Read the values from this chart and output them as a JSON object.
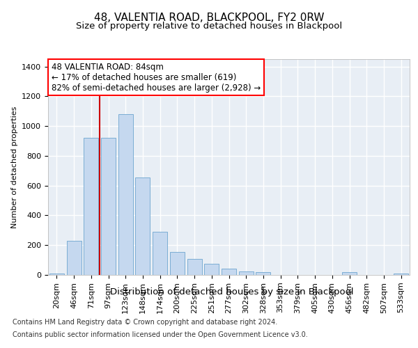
{
  "title": "48, VALENTIA ROAD, BLACKPOOL, FY2 0RW",
  "subtitle": "Size of property relative to detached houses in Blackpool",
  "xlabel": "Distribution of detached houses by size in Blackpool",
  "ylabel": "Number of detached properties",
  "categories": [
    "20sqm",
    "46sqm",
    "71sqm",
    "97sqm",
    "123sqm",
    "148sqm",
    "174sqm",
    "200sqm",
    "225sqm",
    "251sqm",
    "277sqm",
    "302sqm",
    "328sqm",
    "353sqm",
    "379sqm",
    "405sqm",
    "430sqm",
    "456sqm",
    "482sqm",
    "507sqm",
    "533sqm"
  ],
  "values": [
    10,
    228,
    920,
    920,
    1080,
    655,
    290,
    155,
    107,
    73,
    40,
    25,
    20,
    0,
    0,
    0,
    0,
    20,
    0,
    0,
    10
  ],
  "bar_color": "#c5d8ef",
  "bar_edge_color": "#7badd4",
  "red_line_color": "#cc0000",
  "red_line_x": 2.5,
  "ylim": [
    0,
    1450
  ],
  "yticks": [
    0,
    200,
    400,
    600,
    800,
    1000,
    1200,
    1400
  ],
  "annotation_box_text": "48 VALENTIA ROAD: 84sqm\n← 17% of detached houses are smaller (619)\n82% of semi-detached houses are larger (2,928) →",
  "bg_color": "#e8eef5",
  "grid_color": "#ffffff",
  "title_fontsize": 11,
  "subtitle_fontsize": 9.5,
  "xlabel_fontsize": 9.5,
  "ylabel_fontsize": 8,
  "tick_fontsize": 8,
  "annotation_fontsize": 8.5,
  "footer_line1": "Contains HM Land Registry data © Crown copyright and database right 2024.",
  "footer_line2": "Contains public sector information licensed under the Open Government Licence v3.0.",
  "footer_fontsize": 7
}
